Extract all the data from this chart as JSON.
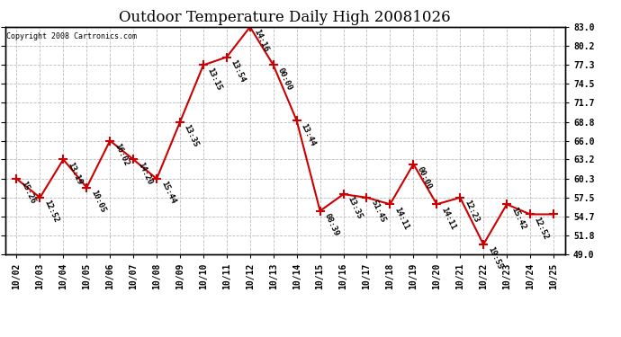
{
  "title": "Outdoor Temperature Daily High 20081026",
  "copyright": "Copyright 2008 Cartronics.com",
  "x_labels": [
    "10/02",
    "10/03",
    "10/04",
    "10/05",
    "10/06",
    "10/07",
    "10/08",
    "10/09",
    "10/10",
    "10/11",
    "10/12",
    "10/13",
    "10/14",
    "10/15",
    "10/16",
    "10/17",
    "10/18",
    "10/19",
    "10/20",
    "10/21",
    "10/22",
    "10/23",
    "10/24",
    "10/25"
  ],
  "y_values": [
    60.3,
    57.5,
    63.2,
    59.0,
    66.0,
    63.2,
    60.3,
    68.8,
    77.3,
    78.5,
    83.0,
    77.3,
    69.0,
    55.5,
    58.0,
    57.5,
    56.5,
    62.5,
    56.5,
    57.5,
    50.5,
    56.5,
    55.0,
    55.0
  ],
  "time_labels": [
    "15:26",
    "12:52",
    "13:19",
    "10:05",
    "16:02",
    "14:20",
    "15:44",
    "13:35",
    "13:15",
    "13:54",
    "14:16",
    "00:00",
    "13:44",
    "08:39",
    "13:35",
    "51:45",
    "14:11",
    "00:00",
    "14:11",
    "12:23",
    "19:55",
    "15:42",
    "12:52",
    ""
  ],
  "line_color": "#cc0000",
  "marker_color": "#cc0000",
  "background_color": "#ffffff",
  "grid_color": "#bbbbbb",
  "yticks": [
    49.0,
    51.8,
    54.7,
    57.5,
    60.3,
    63.2,
    66.0,
    68.8,
    71.7,
    74.5,
    77.3,
    80.2,
    83.0
  ],
  "ylim": [
    49.0,
    83.0
  ],
  "title_fontsize": 12,
  "tick_fontsize": 7,
  "annot_fontsize": 6.5
}
